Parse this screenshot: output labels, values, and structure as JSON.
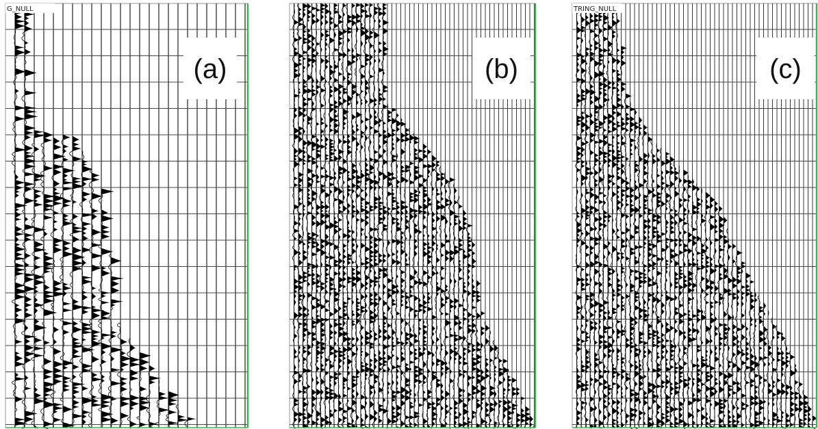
{
  "panels": [
    {
      "header": "G_NULL",
      "label": "(a)"
    },
    {
      "label": "(b)"
    },
    {
      "header": "TRING_NULL",
      "label": "(c)"
    }
  ]
}
